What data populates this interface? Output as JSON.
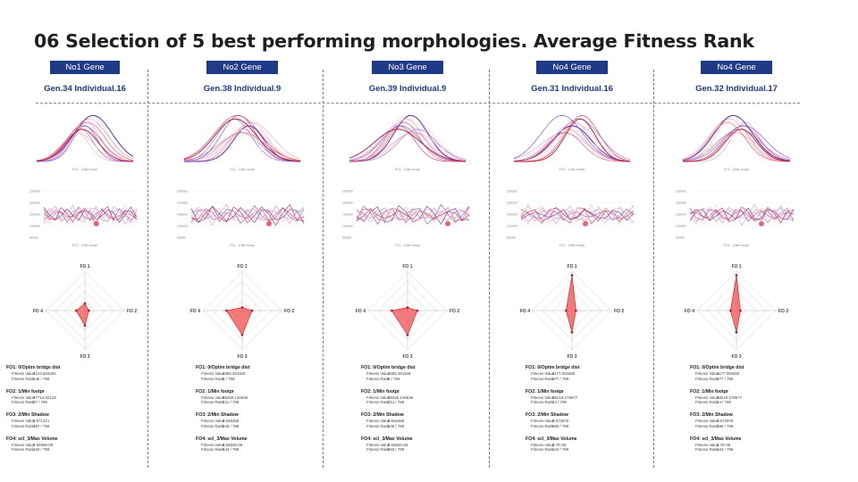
{
  "title": "06 Selection of 5 best performing morphologies. Average Fitness Rank",
  "colors": {
    "badge": "#1f3a86",
    "accent_red": "#d7263d",
    "accent_purple": "#6a3fb8",
    "radar_fill": "#f05a5a"
  },
  "fitness_labels": {
    "value": "Fitness Value",
    "rank": "Fitness Rank"
  },
  "radar_axes": [
    "FO 1",
    "FO 2",
    "FO 3",
    "FO 4"
  ],
  "columns": [
    {
      "badge": "No1 Gene",
      "gen": "Gen.34 Individual.16",
      "objectives": [
        {
          "label": "FO1: 0/Optim bridge dist",
          "value": "7144.655205",
          "rank": "146 / 799"
        },
        {
          "label": "FO2: 1/Min footpr",
          "value": "77714.92128",
          "rank": "87 / 799"
        },
        {
          "label": "FO3: 2/Min Shadow",
          "value": "0.571221",
          "rank": "487 / 799"
        },
        {
          "label": "FO4: scl_3/Max Volume",
          "value": "7.64996-08",
          "rank": "183 / 799"
        }
      ]
    },
    {
      "badge": "No2 Gene",
      "gen": "Gen.38 Individual.9",
      "objectives": [
        {
          "label": "FO1: 0/Optim bridge dist",
          "value": "1095.281159",
          "rank": "5 / 799"
        },
        {
          "label": "FO2: 1/Min footpr",
          "value": "95250.146636",
          "rank": "221 / 799"
        },
        {
          "label": "FO3: 2/Min Shadow",
          "value": "0.568358",
          "rank": "546 / 799"
        },
        {
          "label": "FO4: scl_3/Max Volume",
          "value": "9.65826-08",
          "rank": "343 / 799"
        }
      ]
    },
    {
      "badge": "No3 Gene",
      "gen": "Gen.39 Individual.9",
      "objectives": [
        {
          "label": "FO1: 0/Optim bridge dist",
          "value": "1095.281159",
          "rank": "5 / 799"
        },
        {
          "label": "FO2: 1/Min footpr",
          "value": "95250.146636",
          "rank": "221 / 799"
        },
        {
          "label": "FO3: 2/Min Shadow",
          "value": "0.568358",
          "rank": "546 / 799"
        },
        {
          "label": "FO4: scl_3/Max Volume",
          "value": "9.65826-08",
          "rank": "343 / 799"
        }
      ]
    },
    {
      "badge": "No4 Gene",
      "gen": "Gen.31 Individual.16",
      "objectives": [
        {
          "label": "FO1: 0/Optim bridge dist",
          "value": "1177.082655",
          "rank": "377 / 799"
        },
        {
          "label": "FO2: 1/Min footpr",
          "value": "68219.278677",
          "rank": "14 / 799"
        },
        {
          "label": "FO3: 2/Min Shadow",
          "value": "0.572978",
          "rank": "395 / 799"
        },
        {
          "label": "FO4: scl_3/Max Volume",
          "value": "6.7E-08",
          "rank": "104 / 799"
        }
      ]
    },
    {
      "badge": "No4 Gene",
      "gen": "Gen.32 Individual.17",
      "objectives": [
        {
          "label": "FO1: 0/Optim bridge dist",
          "value": "1177.082655",
          "rank": "377 / 799"
        },
        {
          "label": "FO2: 1/Min footpr",
          "value": "68219.278677",
          "rank": "14 / 799"
        },
        {
          "label": "FO3: 2/Min Shadow",
          "value": "0.572978",
          "rank": "395 / 799"
        },
        {
          "label": "FO4: scl_3/Max Volume",
          "value": "6.7E-08",
          "rank": "104 / 799"
        }
      ]
    }
  ],
  "chart_data": [
    {
      "type": "line",
      "title": "Normal distribution of fitness values per objective",
      "xlabel": "FO1 - 1/Min footpr",
      "series_count": 12,
      "individuals": 5
    },
    {
      "type": "line",
      "title": "Fitness value over generations",
      "xlabel": "FO1 - 1/Min footpr",
      "ylim": [
        0,
        250000
      ],
      "individuals": 5
    },
    {
      "type": "radar",
      "axes": [
        "FO 1",
        "FO 2",
        "FO 3",
        "FO 4"
      ],
      "series": [
        {
          "name": "Gen.34 Individual.16",
          "values": [
            0.18,
            0.1,
            0.38,
            0.22
          ]
        },
        {
          "name": "Gen.38 Individual.9",
          "values": [
            0.08,
            0.25,
            0.62,
            0.4
          ]
        },
        {
          "name": "Gen.39 Individual.9",
          "values": [
            0.08,
            0.25,
            0.62,
            0.4
          ]
        },
        {
          "name": "Gen.31 Individual.16",
          "values": [
            0.9,
            0.1,
            0.55,
            0.15
          ]
        },
        {
          "name": "Gen.32 Individual.17",
          "values": [
            0.9,
            0.1,
            0.55,
            0.15
          ]
        }
      ]
    }
  ]
}
